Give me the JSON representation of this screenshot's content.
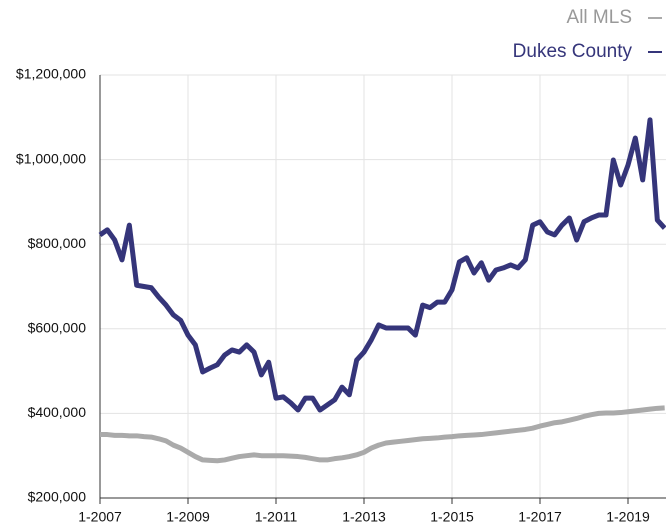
{
  "chart_data": {
    "type": "line",
    "categories": [
      "1-2007",
      null,
      null,
      null,
      null,
      null,
      null,
      null,
      null,
      null,
      null,
      null,
      "1-2009",
      null,
      null,
      null,
      null,
      null,
      null,
      null,
      null,
      null,
      null,
      null,
      "1-2011",
      null,
      null,
      null,
      null,
      null,
      null,
      null,
      null,
      null,
      null,
      null,
      "1-2013",
      null,
      null,
      null,
      null,
      null,
      null,
      null,
      null,
      null,
      null,
      null,
      "1-2015",
      null,
      null,
      null,
      null,
      null,
      null,
      null,
      null,
      null,
      null,
      null,
      "1-2017",
      null,
      null,
      null,
      null,
      null,
      null,
      null,
      null,
      null,
      null,
      null,
      "1-2019",
      null,
      null,
      null,
      null,
      null
    ],
    "series": [
      {
        "name": "All MLS",
        "color": "#aaaaaa",
        "values": [
          350000,
          350000,
          348000,
          348000,
          347000,
          347000,
          345000,
          344000,
          340000,
          335000,
          325000,
          318000,
          308000,
          298000,
          290000,
          289000,
          288000,
          290000,
          294000,
          298000,
          300000,
          302000,
          300000,
          300000,
          300000,
          300000,
          299000,
          298000,
          296000,
          293000,
          290000,
          290000,
          293000,
          295000,
          298000,
          302000,
          308000,
          318000,
          325000,
          330000,
          332000,
          334000,
          336000,
          338000,
          340000,
          341000,
          342000,
          344000,
          345000,
          347000,
          348000,
          349000,
          350000,
          352000,
          354000,
          356000,
          358000,
          360000,
          362000,
          365000,
          370000,
          374000,
          378000,
          380000,
          384000,
          388000,
          393000,
          397000,
          400000,
          401000,
          401000,
          402000,
          404000,
          406000,
          408000,
          410000,
          412000,
          413000
        ]
      },
      {
        "name": "Dukes County",
        "color": "#35357a",
        "values": [
          822000,
          834000,
          810000,
          763000,
          845000,
          703000,
          700000,
          697000,
          675000,
          656000,
          633000,
          620000,
          585000,
          562000,
          498000,
          507000,
          515000,
          538000,
          550000,
          545000,
          562000,
          545000,
          491000,
          521000,
          436000,
          439000,
          425000,
          408000,
          436000,
          436000,
          408000,
          420000,
          432000,
          462000,
          444000,
          526000,
          545000,
          574000,
          609000,
          602000,
          602000,
          602000,
          602000,
          585000,
          656000,
          650000,
          663000,
          663000,
          692000,
          758000,
          768000,
          732000,
          756000,
          715000,
          739000,
          744000,
          751000,
          744000,
          763000,
          845000,
          853000,
          829000,
          822000,
          845000,
          862000,
          810000,
          853000,
          862000,
          869000,
          869000,
          999000,
          940000,
          987000,
          1051000,
          952000,
          1094000,
          857000,
          838000
        ]
      }
    ],
    "ylim": [
      200000,
      1200000
    ],
    "yticks": [
      {
        "value": 200000,
        "label": "$200,000"
      },
      {
        "value": 400000,
        "label": "$400,000"
      },
      {
        "value": 600000,
        "label": "$600,000"
      },
      {
        "value": 800000,
        "label": "$800,000"
      },
      {
        "value": 1000000,
        "label": "$1,000,000"
      },
      {
        "value": 1200000,
        "label": "$1,200,000"
      }
    ],
    "grid": true
  }
}
